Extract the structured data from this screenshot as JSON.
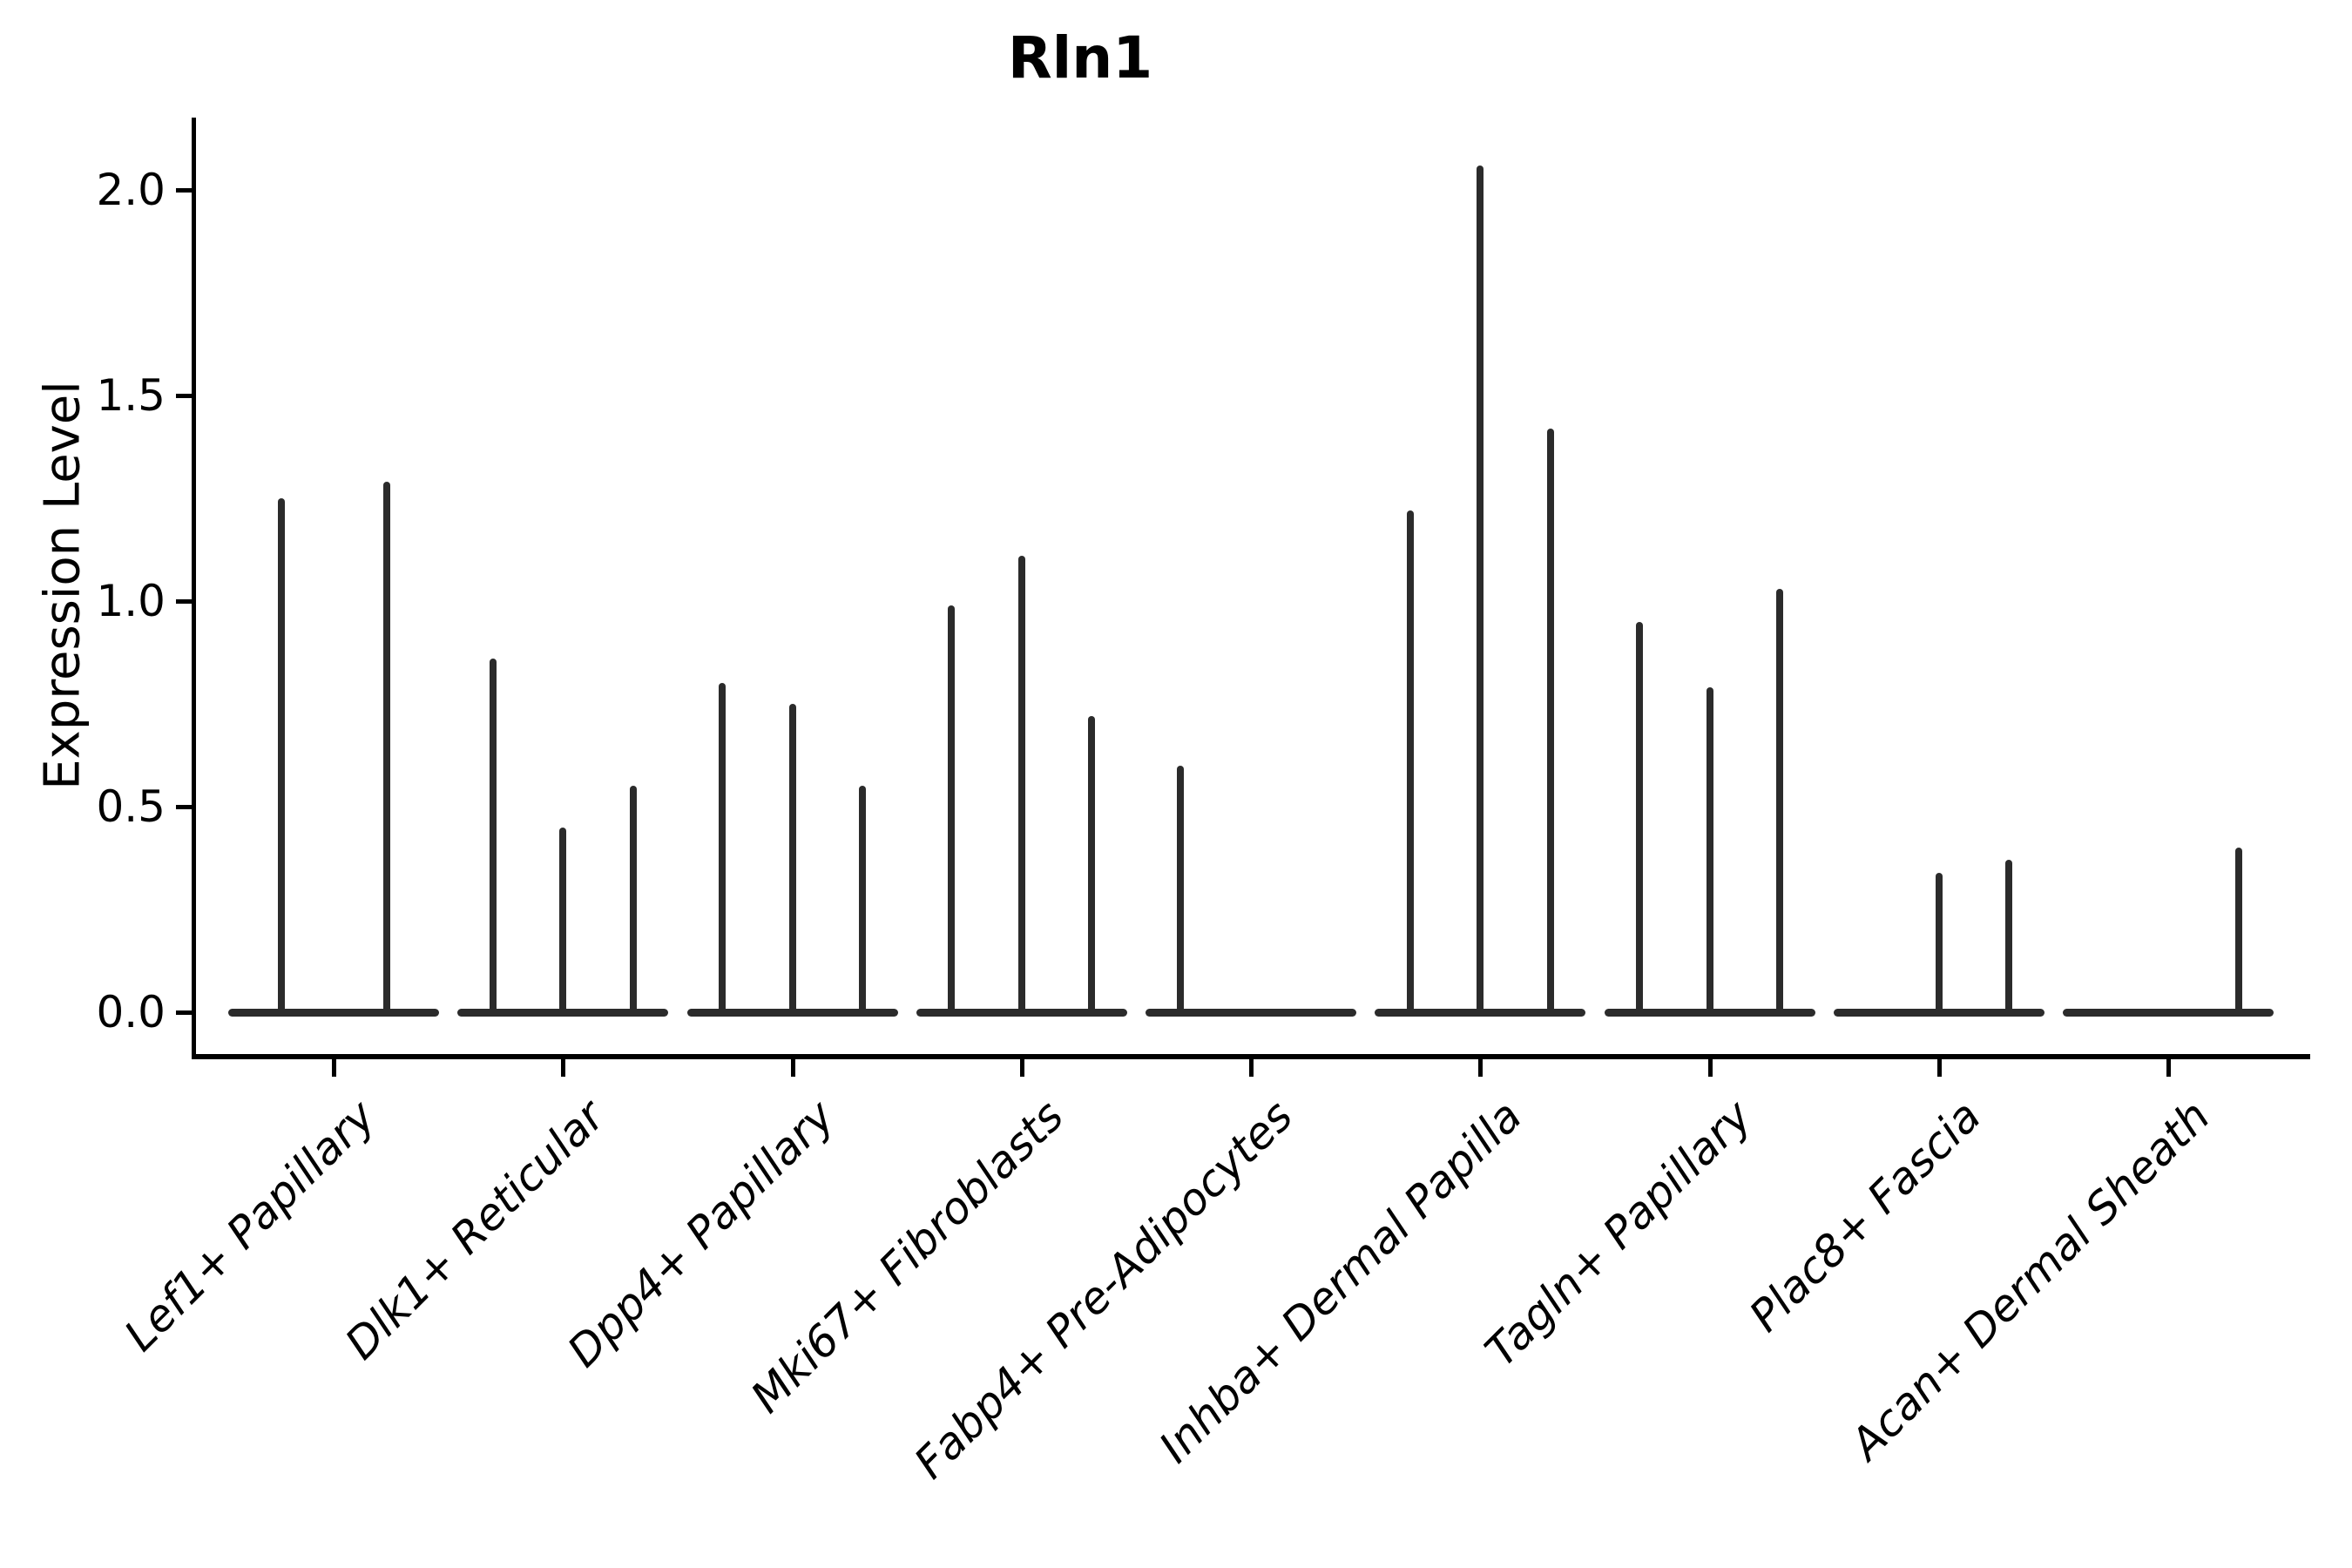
{
  "title": "Rln1",
  "chart_data": {
    "type": "violin",
    "title": "Rln1",
    "xlabel": "",
    "ylabel": "Expression Level",
    "grid": false,
    "legend": null,
    "line_color": "#2b2b2b",
    "axis_color": "#000000",
    "ylim": [
      -0.1,
      2.18
    ],
    "yticks": [
      0.0,
      0.5,
      1.0,
      1.5,
      2.0
    ],
    "ytick_labels": [
      "0.0",
      "0.5",
      "1.0",
      "1.5",
      "2.0"
    ],
    "categories": [
      "Lef1+ Papillary",
      "Dlk1+ Reticular",
      "Dpp4+ Papillary",
      "Mki67+ Fibroblasts",
      "Fabp4+ Pre-Adipocytes",
      "Inhba+ Dermal Papilla",
      "Tagln+ Papillary",
      "Plac8+ Fascia",
      "Acan+ Dermal Sheath"
    ],
    "groups": [
      {
        "label": "Lef1+ Papillary",
        "violins": [
          1.25,
          1.29
        ]
      },
      {
        "label": "Dlk1+ Reticular",
        "violins": [
          0.86,
          0.45,
          0.55
        ]
      },
      {
        "label": "Dpp4+ Papillary",
        "violins": [
          0.8,
          0.75,
          0.55
        ]
      },
      {
        "label": "Mki67+ Fibroblasts",
        "violins": [
          0.99,
          1.11,
          0.72
        ]
      },
      {
        "label": "Fabp4+ Pre-Adipocytes",
        "violins": [
          0.6,
          0,
          0
        ]
      },
      {
        "label": "Inhba+ Dermal Papilla",
        "violins": [
          1.22,
          2.06,
          1.42
        ]
      },
      {
        "label": "Tagln+ Papillary",
        "violins": [
          0.95,
          0.79,
          1.03
        ]
      },
      {
        "label": "Plac8+ Fascia",
        "violins": [
          0,
          0.34,
          0.37
        ]
      },
      {
        "label": "Acan+ Dermal Sheath",
        "violins": [
          0,
          0,
          0.4
        ]
      }
    ]
  }
}
